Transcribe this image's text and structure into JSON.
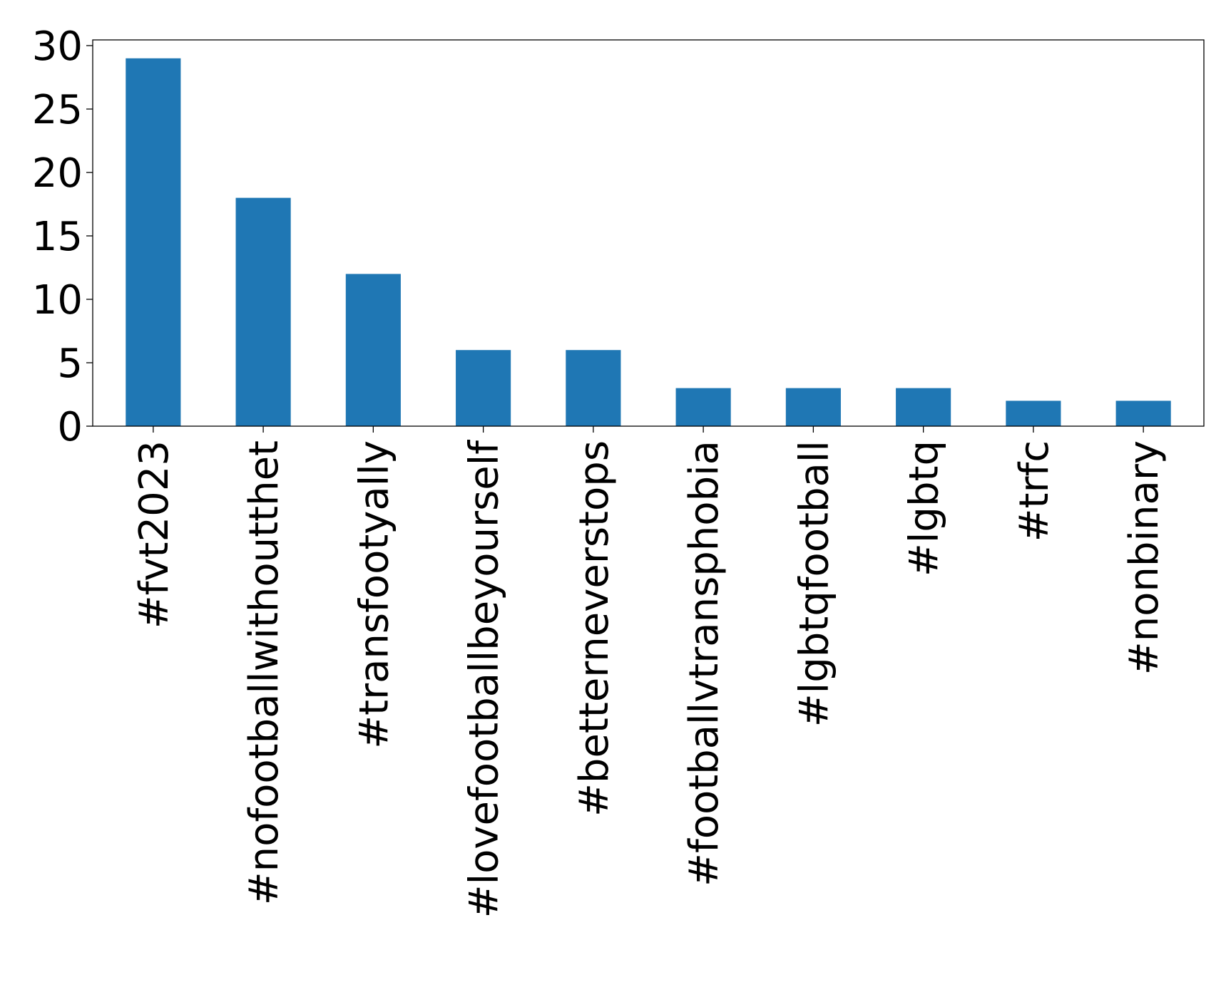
{
  "chart_data": {
    "type": "bar",
    "title": "",
    "xlabel": "",
    "ylabel": "",
    "categories": [
      "#fvt2023",
      "#nofootballwithoutthet",
      "#transfootyally",
      "#lovefootballbeyourself",
      "#betterneverstops",
      "#footballvtransphobia",
      "#lgbtqfootball",
      "#lgbtq",
      "#trfc",
      "#nonbinary"
    ],
    "values": [
      29,
      18,
      12,
      6,
      6,
      3,
      3,
      3,
      2,
      2
    ],
    "ylim": [
      0,
      30.45
    ],
    "yticks": [
      0,
      5,
      10,
      15,
      20,
      25,
      30
    ],
    "ytick_labels": [
      "0",
      "5",
      "10",
      "15",
      "20",
      "25",
      "30"
    ],
    "bar_color": "#1f77b4",
    "grid": false,
    "legend": "none"
  }
}
